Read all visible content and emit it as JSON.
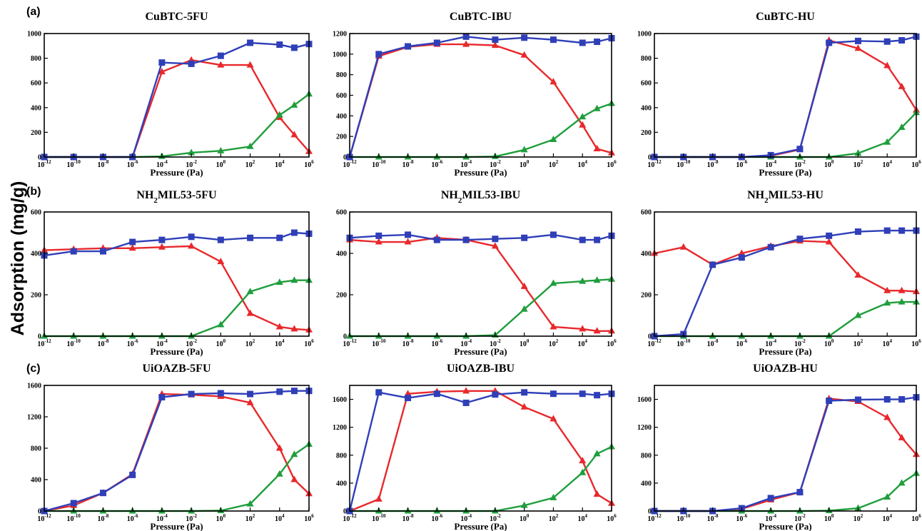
{
  "figure": {
    "y_label": "Adsorption (mg/g)",
    "row_labels": [
      "(a)",
      "(b)",
      "(c)"
    ],
    "series_colors": [
      "#e8282b",
      "#1f9e3c",
      "#2f3fb8"
    ]
  },
  "chart_data": [
    {
      "type": "line",
      "title": "CuBTC-5FU",
      "title_parts": [
        {
          "t": "CuBTC-5FU"
        }
      ],
      "xlabel": "Pressure (Pa)",
      "x_scale": "log",
      "xlim": [
        -12,
        6
      ],
      "ylim": [
        0,
        1000
      ],
      "yticks": [
        0,
        200,
        400,
        600,
        800,
        1000
      ],
      "xticks": [
        -12,
        -10,
        -8,
        -6,
        -4,
        -2,
        0,
        2,
        4,
        6
      ],
      "series": [
        {
          "x": [
            -12,
            -10,
            -8,
            -6,
            -4,
            -2,
            0,
            2,
            4,
            5,
            6
          ],
          "values": [
            0,
            0,
            0,
            0,
            690,
            785,
            745,
            745,
            320,
            180,
            45
          ],
          "color": "#e8282b",
          "marker": "triangle"
        },
        {
          "x": [
            -12,
            -10,
            -8,
            -6,
            -4,
            -2,
            0,
            2,
            4,
            5,
            6
          ],
          "values": [
            0,
            0,
            0,
            0,
            5,
            35,
            50,
            85,
            340,
            420,
            510
          ],
          "color": "#1f9e3c",
          "marker": "triangle"
        },
        {
          "x": [
            -12,
            -10,
            -8,
            -6,
            -4,
            -2,
            0,
            2,
            4,
            5,
            6
          ],
          "values": [
            0,
            0,
            0,
            0,
            765,
            755,
            820,
            925,
            910,
            885,
            915
          ],
          "color": "#2f3fb8",
          "marker": "square"
        }
      ]
    },
    {
      "type": "line",
      "title": "CuBTC-IBU",
      "title_parts": [
        {
          "t": "CuBTC-IBU"
        }
      ],
      "xlabel": "Pressure (Pa)",
      "x_scale": "log",
      "xlim": [
        -12,
        6
      ],
      "ylim": [
        0,
        1200
      ],
      "yticks": [
        0,
        200,
        400,
        600,
        800,
        1000,
        1200
      ],
      "xticks": [
        -12,
        -10,
        -8,
        -6,
        -4,
        -2,
        0,
        2,
        4,
        6
      ],
      "series": [
        {
          "x": [
            -12,
            -10,
            -8,
            -6,
            -4,
            -2,
            0,
            2,
            4,
            5,
            6
          ],
          "values": [
            0,
            980,
            1070,
            1095,
            1095,
            1085,
            990,
            730,
            310,
            80,
            40
          ],
          "color": "#e8282b",
          "marker": "triangle"
        },
        {
          "x": [
            -12,
            -10,
            -8,
            -6,
            -4,
            -2,
            0,
            2,
            4,
            5,
            6
          ],
          "values": [
            0,
            0,
            0,
            0,
            0,
            5,
            70,
            170,
            390,
            470,
            520
          ],
          "color": "#1f9e3c",
          "marker": "triangle"
        },
        {
          "x": [
            -12,
            -10,
            -8,
            -6,
            -4,
            -2,
            0,
            2,
            4,
            5,
            6
          ],
          "values": [
            0,
            1000,
            1075,
            1110,
            1170,
            1140,
            1160,
            1140,
            1110,
            1120,
            1155
          ],
          "color": "#2f3fb8",
          "marker": "square"
        }
      ]
    },
    {
      "type": "line",
      "title": "CuBTC-HU",
      "title_parts": [
        {
          "t": "CuBTC-HU"
        }
      ],
      "xlabel": "Pressure (Pa)",
      "x_scale": "log",
      "xlim": [
        -12,
        6
      ],
      "ylim": [
        0,
        1000
      ],
      "yticks": [
        0,
        200,
        400,
        600,
        800,
        1000
      ],
      "xticks": [
        -12,
        -10,
        -8,
        -6,
        -4,
        -2,
        0,
        2,
        4,
        6
      ],
      "series": [
        {
          "x": [
            -12,
            -10,
            -8,
            -6,
            -4,
            -2,
            0,
            2,
            4,
            5,
            6
          ],
          "values": [
            0,
            0,
            0,
            0,
            10,
            60,
            945,
            880,
            740,
            570,
            380
          ],
          "color": "#e8282b",
          "marker": "triangle"
        },
        {
          "x": [
            -12,
            -10,
            -8,
            -6,
            -4,
            -2,
            0,
            2,
            4,
            5,
            6
          ],
          "values": [
            0,
            0,
            0,
            0,
            0,
            0,
            0,
            30,
            120,
            240,
            360
          ],
          "color": "#1f9e3c",
          "marker": "triangle"
        },
        {
          "x": [
            -12,
            -10,
            -8,
            -6,
            -4,
            -2,
            0,
            2,
            4,
            5,
            6
          ],
          "values": [
            0,
            0,
            0,
            0,
            15,
            65,
            925,
            940,
            935,
            945,
            975
          ],
          "color": "#2f3fb8",
          "marker": "square"
        }
      ]
    },
    {
      "type": "line",
      "title": "NH2MIL53-5FU",
      "title_parts": [
        {
          "t": "NH"
        },
        {
          "t": "2",
          "sub": true
        },
        {
          "t": "MIL53-5FU"
        }
      ],
      "xlabel": "Pressure (Pa)",
      "x_scale": "log",
      "xlim": [
        -12,
        6
      ],
      "ylim": [
        0,
        600
      ],
      "yticks": [
        0,
        200,
        400,
        600
      ],
      "xticks": [
        -12,
        -10,
        -8,
        -6,
        -4,
        -2,
        0,
        2,
        4,
        6
      ],
      "series": [
        {
          "x": [
            -12,
            -10,
            -8,
            -6,
            -4,
            -2,
            0,
            2,
            4,
            5,
            6
          ],
          "values": [
            415,
            420,
            425,
            425,
            430,
            435,
            360,
            110,
            45,
            35,
            30
          ],
          "color": "#e8282b",
          "marker": "triangle"
        },
        {
          "x": [
            -12,
            -10,
            -8,
            -6,
            -4,
            -2,
            0,
            2,
            4,
            5,
            6
          ],
          "values": [
            0,
            0,
            0,
            0,
            0,
            0,
            55,
            215,
            260,
            270,
            270
          ],
          "color": "#1f9e3c",
          "marker": "triangle"
        },
        {
          "x": [
            -12,
            -10,
            -8,
            -6,
            -4,
            -2,
            0,
            2,
            4,
            5,
            6
          ],
          "values": [
            390,
            410,
            410,
            455,
            465,
            480,
            465,
            475,
            475,
            500,
            495
          ],
          "color": "#2f3fb8",
          "marker": "square"
        }
      ]
    },
    {
      "type": "line",
      "title": "NH2MIL53-IBU",
      "title_parts": [
        {
          "t": "NH"
        },
        {
          "t": "2",
          "sub": true
        },
        {
          "t": "MIL53-IBU"
        }
      ],
      "xlabel": "Pressure (Pa)",
      "x_scale": "log",
      "xlim": [
        -12,
        6
      ],
      "ylim": [
        0,
        600
      ],
      "yticks": [
        0,
        200,
        400,
        600
      ],
      "xticks": [
        -12,
        -10,
        -8,
        -6,
        -4,
        -2,
        0,
        2,
        4,
        6
      ],
      "series": [
        {
          "x": [
            -12,
            -10,
            -8,
            -6,
            -4,
            -2,
            0,
            2,
            4,
            5,
            6
          ],
          "values": [
            465,
            455,
            455,
            475,
            465,
            435,
            240,
            45,
            35,
            25,
            25
          ],
          "color": "#e8282b",
          "marker": "triangle"
        },
        {
          "x": [
            -12,
            -10,
            -8,
            -6,
            -4,
            -2,
            0,
            2,
            4,
            5,
            6
          ],
          "values": [
            0,
            0,
            0,
            0,
            0,
            5,
            130,
            255,
            265,
            270,
            275
          ],
          "color": "#1f9e3c",
          "marker": "triangle"
        },
        {
          "x": [
            -12,
            -10,
            -8,
            -6,
            -4,
            -2,
            0,
            2,
            4,
            5,
            6
          ],
          "values": [
            475,
            485,
            490,
            465,
            465,
            470,
            475,
            490,
            465,
            465,
            485
          ],
          "color": "#2f3fb8",
          "marker": "square"
        }
      ]
    },
    {
      "type": "line",
      "title": "NH2MIL53-HU",
      "title_parts": [
        {
          "t": "NH"
        },
        {
          "t": "2",
          "sub": true
        },
        {
          "t": "MIL53-HU"
        }
      ],
      "xlabel": "Pressure (Pa)",
      "x_scale": "log",
      "xlim": [
        -12,
        6
      ],
      "ylim": [
        0,
        600
      ],
      "yticks": [
        0,
        200,
        400,
        600
      ],
      "xticks": [
        -12,
        -10,
        -8,
        -6,
        -4,
        -2,
        0,
        2,
        4,
        6
      ],
      "series": [
        {
          "x": [
            -12,
            -10,
            -8,
            -6,
            -4,
            -2,
            0,
            2,
            4,
            5,
            6
          ],
          "values": [
            400,
            430,
            345,
            400,
            435,
            460,
            455,
            295,
            220,
            220,
            215
          ],
          "color": "#e8282b",
          "marker": "triangle"
        },
        {
          "x": [
            -12,
            -10,
            -8,
            -6,
            -4,
            -2,
            0,
            2,
            4,
            5,
            6
          ],
          "values": [
            0,
            0,
            0,
            0,
            0,
            0,
            0,
            100,
            160,
            165,
            165
          ],
          "color": "#1f9e3c",
          "marker": "triangle"
        },
        {
          "x": [
            -12,
            -10,
            -8,
            -6,
            -4,
            -2,
            0,
            2,
            4,
            5,
            6
          ],
          "values": [
            0,
            10,
            345,
            380,
            430,
            470,
            485,
            505,
            510,
            510,
            510
          ],
          "color": "#2f3fb8",
          "marker": "square"
        }
      ]
    },
    {
      "type": "line",
      "title": "UiOAZB-5FU",
      "title_parts": [
        {
          "t": "UiOAZB-5FU"
        }
      ],
      "xlabel": "Pressure (Pa)",
      "x_scale": "log",
      "xlim": [
        -12,
        6
      ],
      "ylim": [
        0,
        1600
      ],
      "yticks": [
        0,
        400,
        800,
        1200,
        1600
      ],
      "xticks": [
        -12,
        -10,
        -8,
        -6,
        -4,
        -2,
        0,
        2,
        4,
        6
      ],
      "series": [
        {
          "x": [
            -12,
            -10,
            -8,
            -6,
            -4,
            -2,
            0,
            2,
            4,
            5,
            6
          ],
          "values": [
            0,
            70,
            230,
            470,
            1490,
            1480,
            1460,
            1380,
            800,
            400,
            220
          ],
          "color": "#e8282b",
          "marker": "triangle"
        },
        {
          "x": [
            -12,
            -10,
            -8,
            -6,
            -4,
            -2,
            0,
            2,
            4,
            5,
            6
          ],
          "values": [
            0,
            0,
            0,
            0,
            0,
            0,
            5,
            90,
            470,
            720,
            850
          ],
          "color": "#1f9e3c",
          "marker": "triangle"
        },
        {
          "x": [
            -12,
            -10,
            -8,
            -6,
            -4,
            -2,
            0,
            2,
            4,
            5,
            6
          ],
          "values": [
            0,
            100,
            230,
            460,
            1450,
            1490,
            1500,
            1490,
            1520,
            1530,
            1530
          ],
          "color": "#2f3fb8",
          "marker": "square"
        }
      ]
    },
    {
      "type": "line",
      "title": "UiOAZB-IBU",
      "title_parts": [
        {
          "t": "UiOAZB-IBU"
        }
      ],
      "xlabel": "Pressure (Pa)",
      "x_scale": "log",
      "xlim": [
        -12,
        6
      ],
      "ylim": [
        0,
        1800
      ],
      "yticks": [
        0,
        400,
        800,
        1200,
        1600
      ],
      "xticks": [
        -12,
        -10,
        -8,
        -6,
        -4,
        -2,
        0,
        2,
        4,
        6
      ],
      "series": [
        {
          "x": [
            -12,
            -10,
            -8,
            -6,
            -4,
            -2,
            0,
            2,
            4,
            5,
            6
          ],
          "values": [
            0,
            170,
            1680,
            1710,
            1720,
            1720,
            1490,
            1320,
            720,
            240,
            110
          ],
          "color": "#e8282b",
          "marker": "triangle"
        },
        {
          "x": [
            -12,
            -10,
            -8,
            -6,
            -4,
            -2,
            0,
            2,
            4,
            5,
            6
          ],
          "values": [
            0,
            0,
            0,
            0,
            0,
            0,
            80,
            190,
            550,
            820,
            920
          ],
          "color": "#1f9e3c",
          "marker": "triangle"
        },
        {
          "x": [
            -12,
            -10,
            -8,
            -6,
            -4,
            -2,
            0,
            2,
            4,
            5,
            6
          ],
          "values": [
            0,
            1700,
            1620,
            1680,
            1550,
            1670,
            1700,
            1680,
            1680,
            1660,
            1680
          ],
          "color": "#2f3fb8",
          "marker": "square"
        }
      ]
    },
    {
      "type": "line",
      "title": "UiOAZB-HU",
      "title_parts": [
        {
          "t": "UiOAZB-HU"
        }
      ],
      "xlabel": "Pressure (Pa)",
      "x_scale": "log",
      "xlim": [
        -12,
        6
      ],
      "ylim": [
        0,
        1800
      ],
      "yticks": [
        0,
        400,
        800,
        1200,
        1600
      ],
      "xticks": [
        -12,
        -10,
        -8,
        -6,
        -4,
        -2,
        0,
        2,
        4,
        6
      ],
      "series": [
        {
          "x": [
            -12,
            -10,
            -8,
            -6,
            -4,
            -2,
            0,
            2,
            4,
            5,
            6
          ],
          "values": [
            0,
            0,
            0,
            30,
            160,
            270,
            1610,
            1570,
            1340,
            1050,
            810
          ],
          "color": "#e8282b",
          "marker": "triangle"
        },
        {
          "x": [
            -12,
            -10,
            -8,
            -6,
            -4,
            -2,
            0,
            2,
            4,
            5,
            6
          ],
          "values": [
            0,
            0,
            0,
            0,
            0,
            0,
            5,
            40,
            200,
            400,
            540
          ],
          "color": "#1f9e3c",
          "marker": "triangle"
        },
        {
          "x": [
            -12,
            -10,
            -8,
            -6,
            -4,
            -2,
            0,
            2,
            4,
            5,
            6
          ],
          "values": [
            0,
            0,
            0,
            40,
            185,
            270,
            1580,
            1595,
            1600,
            1600,
            1630
          ],
          "color": "#2f3fb8",
          "marker": "square"
        }
      ]
    }
  ]
}
